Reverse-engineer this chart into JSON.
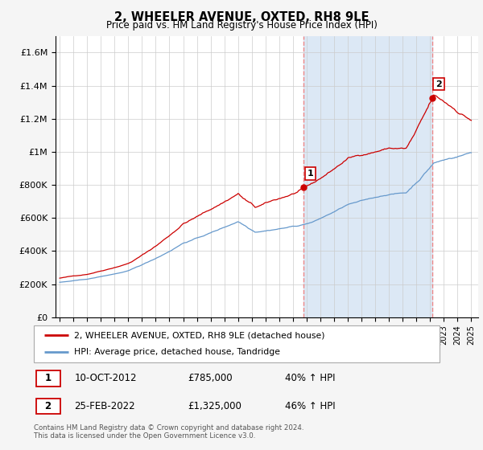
{
  "title": "2, WHEELER AVENUE, OXTED, RH8 9LE",
  "subtitle": "Price paid vs. HM Land Registry's House Price Index (HPI)",
  "red_label": "2, WHEELER AVENUE, OXTED, RH8 9LE (detached house)",
  "blue_label": "HPI: Average price, detached house, Tandridge",
  "sale1_date": "10-OCT-2012",
  "sale1_price": "£785,000",
  "sale1_hpi": "40% ↑ HPI",
  "sale2_date": "25-FEB-2022",
  "sale2_price": "£1,325,000",
  "sale2_hpi": "46% ↑ HPI",
  "footer": "Contains HM Land Registry data © Crown copyright and database right 2024.\nThis data is licensed under the Open Government Licence v3.0.",
  "ylim": [
    0,
    1700000
  ],
  "yticks": [
    0,
    200000,
    400000,
    600000,
    800000,
    1000000,
    1200000,
    1400000,
    1600000
  ],
  "ytick_labels": [
    "£0",
    "£200K",
    "£400K",
    "£600K",
    "£800K",
    "£1M",
    "£1.2M",
    "£1.4M",
    "£1.6M"
  ],
  "x_start_year": 1995,
  "x_end_year": 2025,
  "sale1_year": 2012.78,
  "sale2_year": 2022.14,
  "sale1_price_val": 785000,
  "sale2_price_val": 1325000,
  "red_color": "#cc0000",
  "blue_color": "#6699cc",
  "vline_color": "#ee8888",
  "shade_color": "#dce8f5",
  "plot_bg": "#ffffff",
  "grid_color": "#cccccc",
  "fig_bg": "#f5f5f5"
}
